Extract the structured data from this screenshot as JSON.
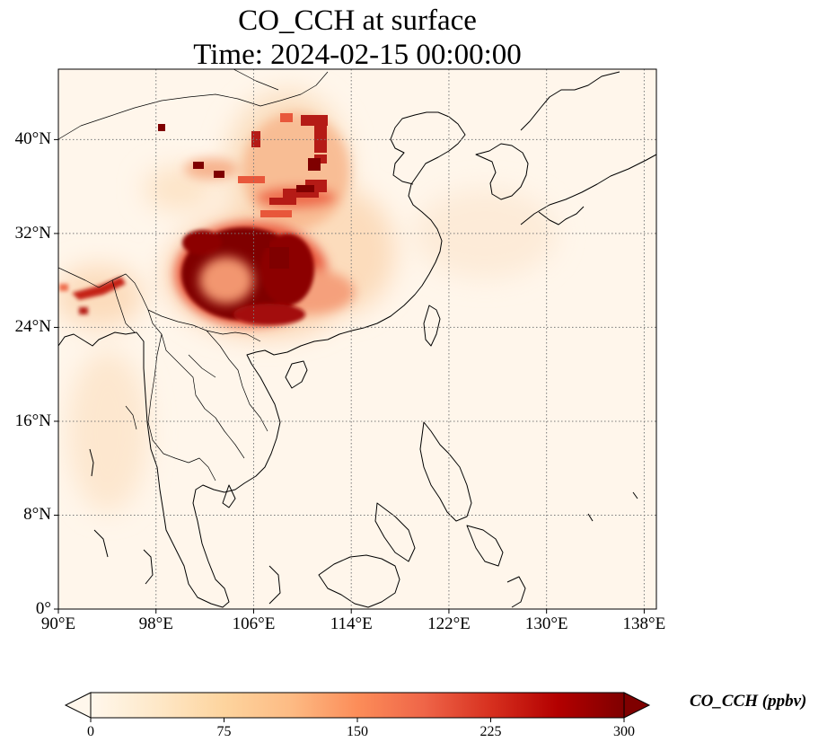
{
  "title_line1": "CO_CCH at surface",
  "title_line2": "Time: 2024-02-15 00:00:00",
  "map": {
    "lon_range": [
      90,
      139
    ],
    "lat_range": [
      0,
      46
    ],
    "lon_ticks": [
      {
        "value": 90,
        "label": "90°E"
      },
      {
        "value": 98,
        "label": "98°E"
      },
      {
        "value": 106,
        "label": "106°E"
      },
      {
        "value": 114,
        "label": "114°E"
      },
      {
        "value": 122,
        "label": "122°E"
      },
      {
        "value": 130,
        "label": "130°E"
      },
      {
        "value": 138,
        "label": "138°E"
      }
    ],
    "lat_ticks": [
      {
        "value": 0,
        "label": "0°"
      },
      {
        "value": 8,
        "label": "8°N"
      },
      {
        "value": 16,
        "label": "16°N"
      },
      {
        "value": 24,
        "label": "24°N"
      },
      {
        "value": 32,
        "label": "32°N"
      },
      {
        "value": 40,
        "label": "40°N"
      }
    ],
    "gridlines": true
  },
  "colorbar": {
    "label": "CO_CCH (ppbv)",
    "min": 0,
    "max": 300,
    "extend": "both",
    "colormap": "OrRd",
    "colors": [
      "#fff7ec",
      "#fee8c8",
      "#fdd49e",
      "#fdbb84",
      "#fc8d59",
      "#ef6548",
      "#d7301f",
      "#b30000",
      "#7f0000"
    ],
    "ticks": [
      {
        "value": 0,
        "label": "0"
      },
      {
        "value": 75,
        "label": "75"
      },
      {
        "value": 150,
        "label": "150"
      },
      {
        "value": 225,
        "label": "225"
      },
      {
        "value": 300,
        "label": "300"
      }
    ]
  }
}
